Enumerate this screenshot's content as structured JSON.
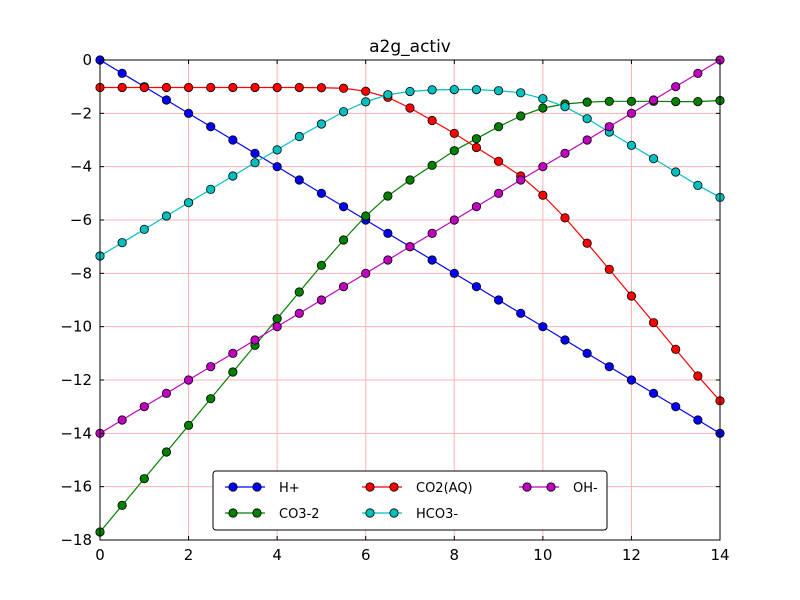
{
  "chart_data": {
    "type": "line",
    "title": "a2g_activ",
    "xlabel": "",
    "ylabel": "",
    "xlim": [
      0,
      14
    ],
    "ylim": [
      -18,
      0
    ],
    "x_ticks": [
      "0",
      "2",
      "4",
      "6",
      "8",
      "10",
      "12",
      "14"
    ],
    "y_ticks": [
      "0",
      "−2",
      "−4",
      "−6",
      "−8",
      "−10",
      "−12",
      "−14",
      "−16",
      "−18"
    ],
    "grid": true,
    "grid_color": "#ffb3b3",
    "legend_position": "lower center",
    "legend_columns": 3,
    "marker": "circle",
    "x": [
      0,
      0.5,
      1,
      1.5,
      2,
      2.5,
      3,
      3.5,
      4,
      4.5,
      5,
      5.5,
      6,
      6.5,
      7,
      7.5,
      8,
      8.5,
      9,
      9.5,
      10,
      10.5,
      11,
      11.5,
      12,
      12.5,
      13,
      13.5,
      14
    ],
    "series": [
      {
        "name": "H+",
        "color": "#0000ff",
        "values": [
          0,
          -0.5,
          -1,
          -1.5,
          -2,
          -2.5,
          -3,
          -3.5,
          -4,
          -4.5,
          -5,
          -5.5,
          -6,
          -6.5,
          -7,
          -7.5,
          -8,
          -8.5,
          -9,
          -9.5,
          -10,
          -10.5,
          -11,
          -11.5,
          -12,
          -12.5,
          -13,
          -13.5,
          -14
        ]
      },
      {
        "name": "CO3-2",
        "color": "#008000",
        "values": [
          -17.7,
          -16.7,
          -15.7,
          -14.7,
          -13.7,
          -12.7,
          -11.7,
          -10.7,
          -9.7,
          -8.7,
          -7.7,
          -6.75,
          -5.85,
          -5.1,
          -4.5,
          -3.95,
          -3.4,
          -2.95,
          -2.5,
          -2.1,
          -1.8,
          -1.65,
          -1.58,
          -1.55,
          -1.55,
          -1.55,
          -1.56,
          -1.56,
          -1.52
        ]
      },
      {
        "name": "CO2(AQ)",
        "color": "#ff0000",
        "values": [
          -1.03,
          -1.03,
          -1.03,
          -1.03,
          -1.03,
          -1.03,
          -1.03,
          -1.03,
          -1.03,
          -1.03,
          -1.04,
          -1.06,
          -1.17,
          -1.4,
          -1.8,
          -2.27,
          -2.75,
          -3.28,
          -3.8,
          -4.35,
          -5.07,
          -5.92,
          -6.87,
          -7.85,
          -8.85,
          -9.85,
          -10.85,
          -11.85,
          -12.78
        ]
      },
      {
        "name": "HCO3-",
        "color": "#00bfbf",
        "values": [
          -7.35,
          -6.85,
          -6.35,
          -5.85,
          -5.35,
          -4.85,
          -4.35,
          -3.85,
          -3.37,
          -2.87,
          -2.4,
          -1.94,
          -1.57,
          -1.3,
          -1.18,
          -1.12,
          -1.11,
          -1.11,
          -1.15,
          -1.23,
          -1.45,
          -1.75,
          -2.2,
          -2.7,
          -3.2,
          -3.7,
          -4.2,
          -4.7,
          -5.15
        ]
      },
      {
        "name": "OH-",
        "color": "#bf00bf",
        "values": [
          -14,
          -13.5,
          -13,
          -12.5,
          -12,
          -11.5,
          -11,
          -10.5,
          -10,
          -9.5,
          -9,
          -8.5,
          -8,
          -7.5,
          -7,
          -6.5,
          -6,
          -5.5,
          -5,
          -4.5,
          -4,
          -3.5,
          -3,
          -2.5,
          -2,
          -1.5,
          -1,
          -0.5,
          0
        ]
      }
    ]
  }
}
